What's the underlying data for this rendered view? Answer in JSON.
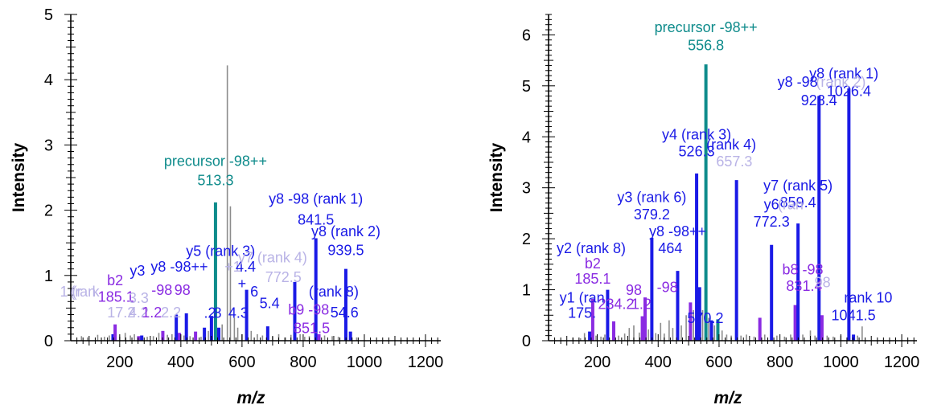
{
  "chart_data": [
    {
      "type": "bar",
      "xlabel": "m/z",
      "ylabel": "Intensity",
      "xlim": [
        40,
        1250
      ],
      "ylim": [
        0,
        5
      ],
      "x_ticks": [
        200,
        400,
        600,
        800,
        1000,
        1200
      ],
      "y_ticks": [
        0,
        1,
        2,
        3,
        4,
        5
      ],
      "colors": {
        "noise": "#8c8c8c",
        "y_ion": "#1a1ae6",
        "b_ion": "#8a2be2",
        "precursor": "#0e8b8b",
        "faded": "#b9b3e6"
      },
      "peaks": [
        {
          "mz": 75,
          "i": 0.07,
          "c": "noise"
        },
        {
          "mz": 95,
          "i": 0.05,
          "c": "noise"
        },
        {
          "mz": 128,
          "i": 0.09,
          "c": "noise"
        },
        {
          "mz": 150,
          "i": 0.06,
          "c": "noise"
        },
        {
          "mz": 166,
          "i": 0.08,
          "c": "noise"
        },
        {
          "mz": 178,
          "i": 0.1,
          "c": "y_ion"
        },
        {
          "mz": 185,
          "i": 0.25,
          "c": "b_ion"
        },
        {
          "mz": 200,
          "i": 0.06,
          "c": "noise"
        },
        {
          "mz": 218,
          "i": 0.12,
          "c": "noise"
        },
        {
          "mz": 235,
          "i": 0.08,
          "c": "noise"
        },
        {
          "mz": 248,
          "i": 0.1,
          "c": "noise"
        },
        {
          "mz": 262,
          "i": 0.07,
          "c": "b_ion"
        },
        {
          "mz": 272,
          "i": 0.08,
          "c": "y_ion"
        },
        {
          "mz": 290,
          "i": 0.06,
          "c": "noise"
        },
        {
          "mz": 310,
          "i": 0.07,
          "c": "noise"
        },
        {
          "mz": 328,
          "i": 0.12,
          "c": "noise"
        },
        {
          "mz": 341,
          "i": 0.15,
          "c": "b_ion"
        },
        {
          "mz": 356,
          "i": 0.09,
          "c": "noise"
        },
        {
          "mz": 371,
          "i": 0.1,
          "c": "noise"
        },
        {
          "mz": 385,
          "i": 0.4,
          "c": "y_ion"
        },
        {
          "mz": 395,
          "i": 0.12,
          "c": "b_ion"
        },
        {
          "mz": 410,
          "i": 0.08,
          "c": "noise"
        },
        {
          "mz": 418,
          "i": 0.42,
          "c": "y_ion"
        },
        {
          "mz": 430,
          "i": 0.07,
          "c": "noise"
        },
        {
          "mz": 448,
          "i": 0.14,
          "c": "b_ion"
        },
        {
          "mz": 466,
          "i": 0.06,
          "c": "noise"
        },
        {
          "mz": 477,
          "i": 0.2,
          "c": "y_ion"
        },
        {
          "mz": 490,
          "i": 0.15,
          "c": "noise"
        },
        {
          "mz": 500,
          "i": 0.38,
          "c": "y_ion"
        },
        {
          "mz": 513.3,
          "i": 2.12,
          "c": "precursor"
        },
        {
          "mz": 524,
          "i": 0.2,
          "c": "y_ion"
        },
        {
          "mz": 535,
          "i": 0.25,
          "c": "noise"
        },
        {
          "mz": 552,
          "i": 4.22,
          "c": "noise"
        },
        {
          "mz": 562,
          "i": 2.06,
          "c": "noise"
        },
        {
          "mz": 575,
          "i": 0.35,
          "c": "noise"
        },
        {
          "mz": 586,
          "i": 0.2,
          "c": "noise"
        },
        {
          "mz": 600,
          "i": 0.1,
          "c": "noise"
        },
        {
          "mz": 615,
          "i": 0.78,
          "c": "y_ion"
        },
        {
          "mz": 630,
          "i": 0.15,
          "c": "noise"
        },
        {
          "mz": 650,
          "i": 0.1,
          "c": "noise"
        },
        {
          "mz": 667,
          "i": 0.08,
          "c": "noise"
        },
        {
          "mz": 684,
          "i": 0.22,
          "c": "y_ion"
        },
        {
          "mz": 700,
          "i": 0.06,
          "c": "noise"
        },
        {
          "mz": 720,
          "i": 0.1,
          "c": "noise"
        },
        {
          "mz": 742,
          "i": 0.05,
          "c": "noise"
        },
        {
          "mz": 760,
          "i": 0.09,
          "c": "noise"
        },
        {
          "mz": 772.5,
          "i": 0.9,
          "c": "y_ion"
        },
        {
          "mz": 790,
          "i": 0.1,
          "c": "noise"
        },
        {
          "mz": 805,
          "i": 0.06,
          "c": "noise"
        },
        {
          "mz": 820,
          "i": 0.07,
          "c": "noise"
        },
        {
          "mz": 841.5,
          "i": 1.57,
          "c": "y_ion"
        },
        {
          "mz": 851.5,
          "i": 0.1,
          "c": "b_ion"
        },
        {
          "mz": 870,
          "i": 0.08,
          "c": "noise"
        },
        {
          "mz": 895,
          "i": 0.07,
          "c": "noise"
        },
        {
          "mz": 915,
          "i": 0.06,
          "c": "noise"
        },
        {
          "mz": 939.5,
          "i": 1.1,
          "c": "y_ion"
        },
        {
          "mz": 954.6,
          "i": 0.14,
          "c": "y_ion"
        },
        {
          "mz": 975,
          "i": 0.05,
          "c": "noise"
        }
      ],
      "labels": [
        {
          "mz": 40,
          "y": 0.68,
          "text": "1 (r",
          "c": "faded"
        },
        {
          "mz": 80,
          "y": 0.68,
          "text": "(ran",
          "c": "faded"
        },
        {
          "mz": 122,
          "y": 0.68,
          "text": "k",
          "c": "faded"
        },
        {
          "mz": 185,
          "y": 0.85,
          "text": "b2",
          "c": "b_ion"
        },
        {
          "mz": 188,
          "y": 0.6,
          "text": "185.1",
          "c": "b_ion"
        },
        {
          "mz": 205,
          "y": 0.36,
          "text": "17.2",
          "c": "faded"
        },
        {
          "mz": 262,
          "y": 0.36,
          "text": "4.2",
          "c": "faded"
        },
        {
          "mz": 305,
          "y": 0.36,
          "text": "1.2",
          "c": "b_ion"
        },
        {
          "mz": 368,
          "y": 0.36,
          "text": "2.2",
          "c": "faded"
        },
        {
          "mz": 262,
          "y": 0.58,
          "text": "3.3",
          "c": "faded"
        },
        {
          "mz": 258,
          "y": 1.0,
          "text": "y3",
          "c": "y_ion"
        },
        {
          "mz": 338,
          "y": 0.7,
          "text": "-98",
          "c": "b_ion"
        },
        {
          "mz": 405,
          "y": 0.7,
          "text": "98",
          "c": "b_ion"
        },
        {
          "mz": 395,
          "y": 1.06,
          "text": "y8 -98++",
          "c": "y_ion"
        },
        {
          "mz": 570,
          "y": 1.06,
          "text": "+1",
          "c": "faded"
        },
        {
          "mz": 612,
          "y": 1.06,
          "text": "4.4",
          "c": "y_ion"
        },
        {
          "mz": 530,
          "y": 1.3,
          "text": "y5 (rank 3)",
          "c": "y_ion"
        },
        {
          "mz": 700,
          "y": 1.2,
          "text": "y7 (rank 4)",
          "c": "faded"
        },
        {
          "mz": 735,
          "y": 0.9,
          "text": "772.5",
          "c": "faded"
        },
        {
          "mz": 600,
          "y": 0.8,
          "text": "+",
          "c": "y_ion"
        },
        {
          "mz": 640,
          "y": 0.68,
          "text": "6",
          "c": "y_ion"
        },
        {
          "mz": 690,
          "y": 0.5,
          "text": "5.4",
          "c": "y_ion"
        },
        {
          "mz": 495,
          "y": 0.35,
          "text": ".2",
          "c": "y_ion"
        },
        {
          "mz": 520,
          "y": 0.35,
          "text": "8",
          "c": "y_ion"
        },
        {
          "mz": 588,
          "y": 0.35,
          "text": "4.3",
          "c": "y_ion"
        },
        {
          "mz": 818,
          "y": 0.4,
          "text": "b9 -98",
          "c": "b_ion"
        },
        {
          "mz": 828,
          "y": 0.12,
          "text": "851.5",
          "c": "b_ion"
        },
        {
          "mz": 900,
          "y": 0.68,
          "text": "(rank 8)",
          "c": "y_ion"
        },
        {
          "mz": 935,
          "y": 0.36,
          "text": "54.6",
          "c": "y_ion"
        },
        {
          "mz": 513.3,
          "y": 2.68,
          "text": "precursor -98++",
          "c": "precursor"
        },
        {
          "mz": 513.3,
          "y": 2.38,
          "text": "513.3",
          "c": "precursor"
        },
        {
          "mz": 841.5,
          "y": 2.1,
          "text": "y8 -98 (rank 1)",
          "c": "y_ion"
        },
        {
          "mz": 841.5,
          "y": 1.78,
          "text": "841.5",
          "c": "y_ion"
        },
        {
          "mz": 939.5,
          "y": 1.6,
          "text": "y8 (rank 2)",
          "c": "y_ion"
        },
        {
          "mz": 939.5,
          "y": 1.31,
          "text": "939.5",
          "c": "y_ion"
        }
      ]
    },
    {
      "type": "bar",
      "xlabel": "m/z",
      "ylabel": "Intensity",
      "xlim": [
        40,
        1250
      ],
      "ylim": [
        0,
        6.4
      ],
      "x_ticks": [
        200,
        400,
        600,
        800,
        1000,
        1200
      ],
      "y_ticks": [
        0,
        1,
        2,
        3,
        4,
        5,
        6
      ],
      "colors": {
        "noise": "#8c8c8c",
        "y_ion": "#1a1ae6",
        "b_ion": "#8a2be2",
        "precursor": "#0e8b8b",
        "faded": "#b9b3e6"
      },
      "peaks": [
        {
          "mz": 120,
          "i": 0.06,
          "c": "noise"
        },
        {
          "mz": 145,
          "i": 0.05,
          "c": "noise"
        },
        {
          "mz": 158,
          "i": 0.15,
          "c": "noise"
        },
        {
          "mz": 175,
          "i": 0.18,
          "c": "y_ion"
        },
        {
          "mz": 185,
          "i": 0.82,
          "c": "b_ion"
        },
        {
          "mz": 196,
          "i": 0.1,
          "c": "noise"
        },
        {
          "mz": 212,
          "i": 0.08,
          "c": "noise"
        },
        {
          "mz": 225,
          "i": 0.12,
          "c": "noise"
        },
        {
          "mz": 234,
          "i": 1.0,
          "c": "y_ion"
        },
        {
          "mz": 254,
          "i": 0.38,
          "c": "b_ion"
        },
        {
          "mz": 270,
          "i": 0.1,
          "c": "noise"
        },
        {
          "mz": 290,
          "i": 0.14,
          "c": "noise"
        },
        {
          "mz": 305,
          "i": 0.25,
          "c": "noise"
        },
        {
          "mz": 320,
          "i": 0.3,
          "c": "noise"
        },
        {
          "mz": 338,
          "i": 0.16,
          "c": "noise"
        },
        {
          "mz": 348,
          "i": 0.48,
          "c": "b_ion"
        },
        {
          "mz": 357,
          "i": 0.85,
          "c": "b_ion"
        },
        {
          "mz": 368,
          "i": 0.22,
          "c": "noise"
        },
        {
          "mz": 379.2,
          "i": 2.02,
          "c": "y_ion"
        },
        {
          "mz": 392,
          "i": 0.15,
          "c": "noise"
        },
        {
          "mz": 408,
          "i": 0.35,
          "c": "noise"
        },
        {
          "mz": 420,
          "i": 0.14,
          "c": "noise"
        },
        {
          "mz": 436,
          "i": 0.4,
          "c": "noise"
        },
        {
          "mz": 448,
          "i": 0.25,
          "c": "noise"
        },
        {
          "mz": 464,
          "i": 1.37,
          "c": "y_ion"
        },
        {
          "mz": 476,
          "i": 0.3,
          "c": "noise"
        },
        {
          "mz": 492,
          "i": 0.5,
          "c": "noise"
        },
        {
          "mz": 506,
          "i": 0.75,
          "c": "b_ion"
        },
        {
          "mz": 516,
          "i": 0.6,
          "c": "noise"
        },
        {
          "mz": 526.3,
          "i": 3.28,
          "c": "y_ion"
        },
        {
          "mz": 536,
          "i": 1.05,
          "c": "y_ion"
        },
        {
          "mz": 546,
          "i": 0.6,
          "c": "noise"
        },
        {
          "mz": 556.8,
          "i": 5.42,
          "c": "precursor"
        },
        {
          "mz": 566,
          "i": 0.45,
          "c": "noise"
        },
        {
          "mz": 575,
          "i": 0.4,
          "c": "y_ion"
        },
        {
          "mz": 585,
          "i": 0.3,
          "c": "noise"
        },
        {
          "mz": 596,
          "i": 0.42,
          "c": "precursor"
        },
        {
          "mz": 610,
          "i": 0.2,
          "c": "noise"
        },
        {
          "mz": 625,
          "i": 0.12,
          "c": "noise"
        },
        {
          "mz": 640,
          "i": 0.1,
          "c": "noise"
        },
        {
          "mz": 657.3,
          "i": 3.15,
          "c": "y_ion"
        },
        {
          "mz": 672,
          "i": 0.1,
          "c": "noise"
        },
        {
          "mz": 690,
          "i": 0.12,
          "c": "noise"
        },
        {
          "mz": 715,
          "i": 0.08,
          "c": "noise"
        },
        {
          "mz": 734,
          "i": 0.45,
          "c": "b_ion"
        },
        {
          "mz": 750,
          "i": 0.12,
          "c": "noise"
        },
        {
          "mz": 772.3,
          "i": 1.88,
          "c": "y_ion"
        },
        {
          "mz": 790,
          "i": 0.1,
          "c": "noise"
        },
        {
          "mz": 815,
          "i": 0.08,
          "c": "noise"
        },
        {
          "mz": 835,
          "i": 0.12,
          "c": "noise"
        },
        {
          "mz": 850,
          "i": 0.7,
          "c": "b_ion"
        },
        {
          "mz": 859.4,
          "i": 2.3,
          "c": "y_ion"
        },
        {
          "mz": 875,
          "i": 0.12,
          "c": "noise"
        },
        {
          "mz": 900,
          "i": 0.2,
          "c": "noise"
        },
        {
          "mz": 915,
          "i": 0.1,
          "c": "noise"
        },
        {
          "mz": 928.4,
          "i": 4.8,
          "c": "y_ion"
        },
        {
          "mz": 938,
          "i": 0.5,
          "c": "b_ion"
        },
        {
          "mz": 955,
          "i": 0.1,
          "c": "noise"
        },
        {
          "mz": 975,
          "i": 0.08,
          "c": "noise"
        },
        {
          "mz": 1000,
          "i": 0.1,
          "c": "noise"
        },
        {
          "mz": 1026.4,
          "i": 4.95,
          "c": "y_ion"
        },
        {
          "mz": 1041.5,
          "i": 0.12,
          "c": "y_ion"
        },
        {
          "mz": 1055,
          "i": 0.1,
          "c": "noise"
        },
        {
          "mz": 1070,
          "i": 0.28,
          "c": "noise"
        }
      ],
      "labels": [
        {
          "mz": 556.8,
          "y": 6.05,
          "text": "precursor -98++",
          "c": "precursor"
        },
        {
          "mz": 556.8,
          "y": 5.7,
          "text": "556.8",
          "c": "precursor"
        },
        {
          "mz": 1010,
          "y": 5.15,
          "text": "y8 (rank 1)",
          "c": "y_ion"
        },
        {
          "mz": 1026.4,
          "y": 4.8,
          "text": "1026.4",
          "c": "y_ion"
        },
        {
          "mz": 1000,
          "y": 4.98,
          "text": "(rank 2)",
          "c": "faded"
        },
        {
          "mz": 858,
          "y": 4.98,
          "text": "y8 -98",
          "c": "y_ion"
        },
        {
          "mz": 928.4,
          "y": 4.62,
          "text": "928.4",
          "c": "y_ion"
        },
        {
          "mz": 526.3,
          "y": 3.95,
          "text": "y4 (rank 3)",
          "c": "y_ion"
        },
        {
          "mz": 526.3,
          "y": 3.62,
          "text": "526.3",
          "c": "y_ion"
        },
        {
          "mz": 640,
          "y": 3.75,
          "text": "(rank 4)",
          "c": "y_ion"
        },
        {
          "mz": 650,
          "y": 3.42,
          "text": "657.3",
          "c": "faded"
        },
        {
          "mz": 379.2,
          "y": 2.72,
          "text": "y3 (rank 6)",
          "c": "y_ion"
        },
        {
          "mz": 379.2,
          "y": 2.38,
          "text": "379.2",
          "c": "y_ion"
        },
        {
          "mz": 859.4,
          "y": 2.95,
          "text": "y7 (rank 5)",
          "c": "y_ion"
        },
        {
          "mz": 859.4,
          "y": 2.62,
          "text": "859.4",
          "c": "y_ion"
        },
        {
          "mz": 772.3,
          "y": 2.58,
          "text": "y6",
          "c": "y_ion"
        },
        {
          "mz": 835,
          "y": 2.58,
          "text": "(ran",
          "c": "faded"
        },
        {
          "mz": 772.3,
          "y": 2.24,
          "text": "772.3",
          "c": "y_ion"
        },
        {
          "mz": 464,
          "y": 2.05,
          "text": "y8 -98++",
          "c": "y_ion"
        },
        {
          "mz": 440,
          "y": 1.72,
          "text": "464",
          "c": "y_ion"
        },
        {
          "mz": 180,
          "y": 1.72,
          "text": "y2 (rank 8)",
          "c": "y_ion"
        },
        {
          "mz": 185,
          "y": 1.42,
          "text": "b2",
          "c": "b_ion"
        },
        {
          "mz": 185,
          "y": 1.12,
          "text": "185.1",
          "c": "b_ion"
        },
        {
          "mz": 262,
          "y": 0.62,
          "text": "234.2",
          "c": "b_ion"
        },
        {
          "mz": 320,
          "y": 0.9,
          "text": "98",
          "c": "b_ion"
        },
        {
          "mz": 345,
          "y": 0.62,
          "text": "1.2",
          "c": "b_ion"
        },
        {
          "mz": 430,
          "y": 0.95,
          "text": "-98",
          "c": "b_ion"
        },
        {
          "mz": 150,
          "y": 0.75,
          "text": "y1 (ran",
          "c": "y_ion"
        },
        {
          "mz": 150,
          "y": 0.45,
          "text": "175.",
          "c": "y_ion"
        },
        {
          "mz": 555,
          "y": 0.35,
          "text": "570.2",
          "c": "y_ion"
        },
        {
          "mz": 875,
          "y": 1.3,
          "text": "b8 -98",
          "c": "b_ion"
        },
        {
          "mz": 880,
          "y": 0.98,
          "text": "831.4",
          "c": "b_ion"
        },
        {
          "mz": 940,
          "y": 1.05,
          "text": "98",
          "c": "faded"
        },
        {
          "mz": 1090,
          "y": 0.75,
          "text": "rank 10",
          "c": "y_ion"
        },
        {
          "mz": 1041.5,
          "y": 0.4,
          "text": "1041.5",
          "c": "y_ion"
        }
      ]
    }
  ]
}
